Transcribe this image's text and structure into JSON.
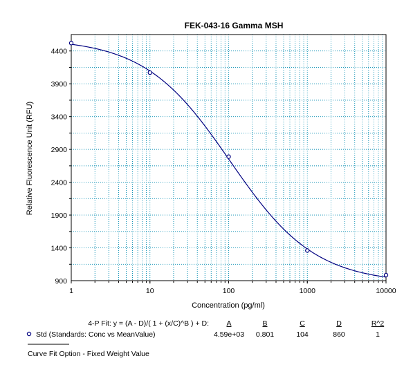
{
  "chart_data": {
    "type": "scatter",
    "title": "FEK-043-16 Gamma MSH",
    "xlabel": "Concentration (pg/ml)",
    "ylabel": "Relative Fluorescence Unit (RFU)",
    "x_scale": "log",
    "xlim": [
      1,
      10000
    ],
    "ylim": [
      900,
      4650
    ],
    "x_ticks": [
      "1",
      "10",
      "100",
      "1000",
      "10000"
    ],
    "y_ticks": [
      "900",
      "1400",
      "1900",
      "2400",
      "2900",
      "3400",
      "3900",
      "4400"
    ],
    "grid": true,
    "series": [
      {
        "name": "Std (Standards: Conc vs MeanValue)",
        "x": [
          1,
          10,
          100,
          1000,
          10000
        ],
        "y": [
          4520,
          4070,
          2790,
          1360,
          985
        ]
      }
    ],
    "fit": {
      "equation": "4-P Fit:  y = (A - D)/( 1 + (x/C)^B ) + D:",
      "headers": [
        "A",
        "B",
        "C",
        "D",
        "R^2"
      ],
      "values": [
        "4.59e+03",
        "0.801",
        "104",
        "860",
        "1"
      ],
      "A": 4590,
      "B": 0.801,
      "C": 104,
      "D": 860
    },
    "footer": "Curve Fit Option - Fixed Weight Value",
    "colors": {
      "grid": "#008bb0",
      "curve": "#000080",
      "marker": "#000080"
    }
  }
}
